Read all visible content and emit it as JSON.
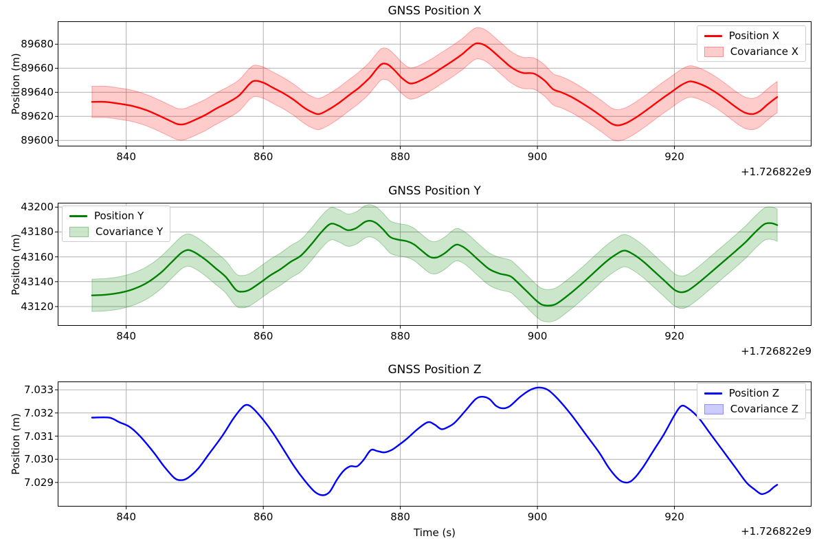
{
  "figure": {
    "xlabel": "Time (s)",
    "offset_text": "+1.726822e9",
    "background": "#ffffff",
    "grid_color": "#b0b0b0",
    "spine_color": "#000000"
  },
  "chart_data": [
    {
      "type": "line",
      "title": "GNSS Position X",
      "ylabel": "Position (m)",
      "xlim": [
        830,
        940
      ],
      "ylim": [
        89595,
        89699
      ],
      "x_ticks": [
        840,
        860,
        880,
        900,
        920
      ],
      "x_tick_labels": [
        "840",
        "860",
        "880",
        "900",
        "920"
      ],
      "y_tick_values": [
        89600,
        89620,
        89640,
        89660,
        89680
      ],
      "y_tick_labels": [
        "89600",
        "89620",
        "89640",
        "89660",
        "89680"
      ],
      "grid": true,
      "legend_position": "upper right",
      "offset_text": "+1.726822e9",
      "series": [
        {
          "name": "Position X",
          "color": "#ff0000",
          "x": [
            835,
            837,
            839,
            841,
            843,
            845,
            846.5,
            847.5,
            848.5,
            850,
            851.5,
            853,
            855,
            856.5,
            858,
            858.8,
            860,
            861.5,
            863,
            864.5,
            866,
            867.3,
            868.2,
            869.5,
            871,
            872.5,
            874,
            875.5,
            876.5,
            877.3,
            878.2,
            879.2,
            880.2,
            881.3,
            882.2,
            883.2,
            884.5,
            886,
            887.5,
            889,
            890,
            891,
            892,
            893,
            894,
            895,
            896,
            897,
            898,
            899.5,
            901,
            902.3,
            903.5,
            905,
            906.5,
            908,
            909.5,
            910.8,
            911.8,
            913,
            914.5,
            916,
            918,
            919.5,
            921,
            922.2,
            923.2,
            924.5,
            926,
            927.5,
            929,
            930.3,
            931.5,
            932.5,
            933.5,
            934.5,
            935
          ],
          "y": [
            89632,
            89632,
            89630.5,
            89628.5,
            89625,
            89620,
            89616,
            89613.5,
            89613.5,
            89617,
            89621,
            89626,
            89632,
            89637.5,
            89647,
            89649.5,
            89648,
            89643.5,
            89639,
            89633.5,
            89627,
            89623,
            89622,
            89625.5,
            89631,
            89637.5,
            89644,
            89652,
            89659,
            89663.5,
            89663,
            89658,
            89652,
            89647.5,
            89648,
            89650.5,
            89654.5,
            89660,
            89665.5,
            89671.5,
            89676.5,
            89680.5,
            89680,
            89676.5,
            89671.5,
            89666.5,
            89661.5,
            89658,
            89656,
            89655.5,
            89650,
            89642.5,
            89640,
            89636,
            89631,
            89625.5,
            89619.5,
            89614,
            89612.5,
            89614.5,
            89619.5,
            89625.5,
            89634,
            89640,
            89646,
            89649,
            89648,
            89645,
            89640,
            89634,
            89627.5,
            89623,
            89622,
            89624.5,
            89629.5,
            89634,
            89636
          ]
        }
      ],
      "band": {
        "label": "Covariance X",
        "halfwidth": 13,
        "fill_color": "rgba(255,0,0,0.2)",
        "edge_color": "rgba(255,0,0,0.3)"
      }
    },
    {
      "type": "line",
      "title": "GNSS Position Y",
      "ylabel": "Position (m)",
      "xlim": [
        830,
        940
      ],
      "ylim": [
        43104.5,
        43203.5
      ],
      "x_ticks": [
        840,
        860,
        880,
        900,
        920
      ],
      "x_tick_labels": [
        "840",
        "860",
        "880",
        "900",
        "920"
      ],
      "y_tick_values": [
        43120,
        43140,
        43160,
        43180,
        43200
      ],
      "y_tick_labels": [
        "43120",
        "43140",
        "43160",
        "43180",
        "43200"
      ],
      "grid": true,
      "legend_position": "upper left",
      "offset_text": "+1.726822e9",
      "series": [
        {
          "name": "Position Y",
          "color": "#008000",
          "x": [
            835,
            837,
            839,
            841,
            843,
            845,
            846.5,
            848,
            849,
            850,
            851.5,
            853,
            854.5,
            856,
            857,
            858,
            859.5,
            861,
            862.5,
            864,
            865.5,
            867,
            868.5,
            869.8,
            871,
            872.3,
            873.5,
            874.8,
            875.6,
            876.5,
            877.5,
            878.5,
            879.5,
            881,
            882,
            883,
            884.3,
            885.3,
            886.5,
            888,
            889,
            890,
            891.5,
            893,
            894.5,
            896,
            897,
            898.5,
            900,
            901,
            902.5,
            904,
            906,
            908,
            910,
            911.5,
            912.7,
            914,
            915.5,
            917,
            918.5,
            920,
            921,
            922,
            923.5,
            925,
            927,
            929,
            930.5,
            932,
            933.2,
            934.2,
            935
          ],
          "y": [
            43129,
            43129.5,
            43131,
            43134,
            43139,
            43147,
            43155,
            43163,
            43165.5,
            43163.5,
            43158,
            43151,
            43144,
            43133.5,
            43132,
            43133.5,
            43139,
            43145,
            43150,
            43156,
            43161,
            43170,
            43180,
            43186.5,
            43185,
            43181.5,
            43183,
            43188,
            43189,
            43187,
            43182,
            43176,
            43174,
            43172.5,
            43170,
            43165.5,
            43160,
            43159.5,
            43163,
            43169.5,
            43168.5,
            43164.5,
            43157,
            43150,
            43146.5,
            43144.5,
            43140,
            43132,
            43124,
            43121,
            43121.5,
            43127,
            43136,
            43146,
            43156,
            43162,
            43165,
            43162,
            43156,
            43148.5,
            43141,
            43133.5,
            43131.5,
            43133,
            43139,
            43146,
            43155.5,
            43165,
            43172.5,
            43181,
            43186.5,
            43187,
            43185.5
          ]
        }
      ],
      "band": {
        "label": "Covariance Y",
        "halfwidth": 13,
        "fill_color": "rgba(0,128,0,0.2)",
        "edge_color": "rgba(0,128,0,0.3)"
      }
    },
    {
      "type": "line",
      "title": "GNSS Position Z",
      "ylabel": "Position (m)",
      "xlim": [
        830,
        940
      ],
      "ylim": [
        7.02796,
        7.03336
      ],
      "x_ticks": [
        840,
        860,
        880,
        900,
        920
      ],
      "x_tick_labels": [
        "840",
        "860",
        "880",
        "900",
        "920"
      ],
      "y_tick_values": [
        7.029,
        7.03,
        7.031,
        7.032,
        7.033
      ],
      "y_tick_labels": [
        "7.029",
        "7.030",
        "7.031",
        "7.032",
        "7.033"
      ],
      "grid": true,
      "legend_position": "upper right",
      "offset_text": "+1.726822e9",
      "series": [
        {
          "name": "Position Z",
          "color": "#0000ff",
          "x": [
            835,
            837.5,
            839,
            840.5,
            842,
            844,
            845.5,
            847,
            848,
            849,
            850.5,
            852,
            854,
            855.5,
            856.8,
            857.6,
            858.5,
            860,
            861.5,
            863,
            864.5,
            866,
            867.5,
            868.7,
            869.7,
            870.7,
            871.7,
            872.7,
            873.7,
            874.7,
            875.7,
            876.7,
            877.7,
            878.7,
            879.7,
            881,
            882.5,
            884,
            885,
            886,
            887,
            888,
            889.5,
            891,
            892,
            893,
            894,
            895,
            896,
            897.5,
            899,
            900.2,
            901.5,
            903,
            905,
            907,
            909,
            910.5,
            912,
            913.2,
            914.2,
            915.5,
            917,
            918.5,
            920,
            921,
            922,
            923.5,
            925,
            927,
            929,
            930.5,
            931.7,
            932.7,
            933.7,
            934.5,
            935
          ],
          "y": [
            7.0318,
            7.0318,
            7.0316,
            7.0314,
            7.031,
            7.0303,
            7.0297,
            7.0292,
            7.0291,
            7.0292,
            7.0296,
            7.0302,
            7.031,
            7.0317,
            7.0322,
            7.03235,
            7.0322,
            7.0317,
            7.0311,
            7.0304,
            7.0297,
            7.0291,
            7.0286,
            7.02845,
            7.0286,
            7.0291,
            7.0295,
            7.0297,
            7.0297,
            7.03,
            7.0304,
            7.03035,
            7.0303,
            7.0304,
            7.0306,
            7.0309,
            7.0313,
            7.0316,
            7.0315,
            7.0313,
            7.0314,
            7.0316,
            7.0321,
            7.0326,
            7.0327,
            7.0326,
            7.0323,
            7.0322,
            7.0323,
            7.0327,
            7.033,
            7.0331,
            7.033,
            7.0326,
            7.0319,
            7.0311,
            7.0303,
            7.0296,
            7.0291,
            7.029,
            7.0292,
            7.0297,
            7.0304,
            7.0311,
            7.0319,
            7.0323,
            7.0322,
            7.0318,
            7.0312,
            7.0304,
            7.0296,
            7.029,
            7.0287,
            7.0285,
            7.0286,
            7.0288,
            7.0289
          ]
        }
      ],
      "band": {
        "label": "Covariance Z",
        "halfwidth": 2e-05,
        "fill_color": "rgba(0,0,255,0.2)",
        "edge_color": "rgba(0,0,255,0.3)"
      }
    }
  ]
}
